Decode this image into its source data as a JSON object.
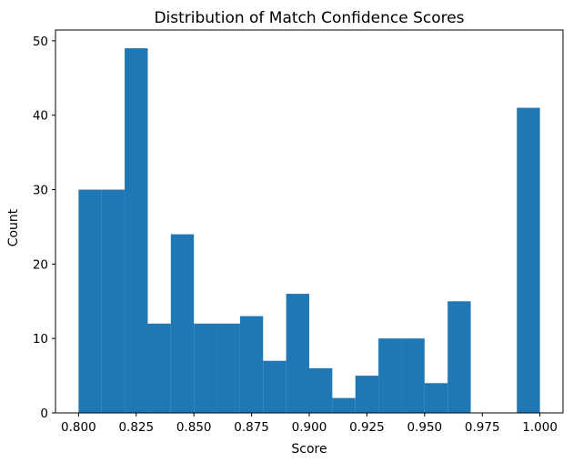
{
  "chart_data": {
    "type": "bar",
    "title": "Distribution of Match Confidence Scores",
    "xlabel": "Score",
    "ylabel": "Count",
    "xlim": [
      0.79,
      1.01
    ],
    "ylim": [
      0,
      51.45
    ],
    "xticks": [
      0.8,
      0.825,
      0.85,
      0.875,
      0.9,
      0.925,
      0.95,
      0.975,
      1.0
    ],
    "xtick_labels": [
      "0.800",
      "0.825",
      "0.850",
      "0.875",
      "0.900",
      "0.925",
      "0.950",
      "0.975",
      "1.000"
    ],
    "yticks": [
      0,
      10,
      20,
      30,
      40,
      50
    ],
    "ytick_labels": [
      "0",
      "10",
      "20",
      "30",
      "40",
      "50"
    ],
    "bin_edges": [
      0.8,
      0.81,
      0.82,
      0.83,
      0.84,
      0.85,
      0.86,
      0.87,
      0.88,
      0.89,
      0.9,
      0.91,
      0.92,
      0.93,
      0.94,
      0.95,
      0.96,
      0.97,
      0.98,
      0.99,
      1.0
    ],
    "values": [
      30,
      30,
      49,
      12,
      24,
      12,
      12,
      13,
      7,
      16,
      6,
      2,
      5,
      10,
      10,
      4,
      15,
      0,
      0,
      41
    ],
    "bar_color": "#1f77b4",
    "grid": false,
    "legend": "none"
  }
}
